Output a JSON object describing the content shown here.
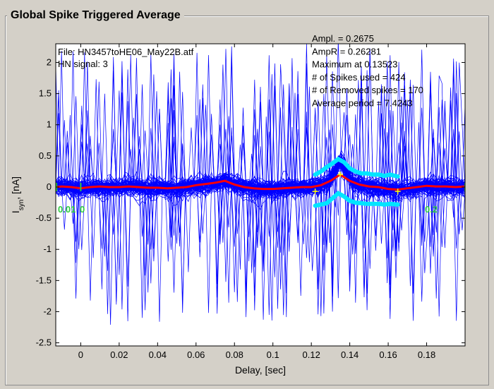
{
  "panel": {
    "title": "Global Spike Triggered Average"
  },
  "chart_data": {
    "type": "line",
    "title": "",
    "xlabel": "Delay, [sec]",
    "ylabel_main": "I",
    "ylabel_sub": "syn",
    "ylabel_tail": ", [nA]",
    "xlim": [
      -0.013,
      0.2
    ],
    "ylim": [
      -2.55,
      2.3
    ],
    "x_ticks": [
      0,
      0.02,
      0.04,
      0.06,
      0.08,
      0.1,
      0.12,
      0.14,
      0.16,
      0.18
    ],
    "x_tick_labels": [
      "0",
      "0.02",
      "0.04",
      "0.06",
      "0.08",
      "0.1",
      "0.12",
      "0.14",
      "0.16",
      "0.18"
    ],
    "y_ticks": [
      2,
      1.5,
      1,
      0.5,
      0,
      -0.5,
      -1,
      -1.5,
      -2,
      -2.5
    ],
    "y_tick_labels": [
      "2",
      "1.5",
      "1",
      "0.5",
      "0",
      "-0.5",
      "-1",
      "-1.5",
      "-2",
      "-2.5"
    ],
    "file_line": "File: HN3457toHE06_May22B.atf",
    "signal_line": "HN signal: 3",
    "stats": [
      "Ampl. = 0.2675",
      "AmpR = 0.26281",
      "Maximum at 0.13523",
      "# of Spikes used = 424",
      "# of Removed spikes = 170",
      "Average period = 7.4243"
    ],
    "window_left_label": "0.01",
    "window_left_marker": "0",
    "window_right_label": "0.2",
    "window_left_x": 0,
    "window_right_x": 0.2,
    "average_trace": {
      "x": [
        -0.013,
        -0.01,
        -0.005,
        0,
        0.005,
        0.01,
        0.015,
        0.02,
        0.025,
        0.03,
        0.035,
        0.04,
        0.045,
        0.05,
        0.055,
        0.06,
        0.065,
        0.07,
        0.075,
        0.08,
        0.085,
        0.09,
        0.095,
        0.1,
        0.105,
        0.11,
        0.115,
        0.12,
        0.125,
        0.13,
        0.135,
        0.14,
        0.145,
        0.15,
        0.155,
        0.16,
        0.165,
        0.17,
        0.175,
        0.18,
        0.185,
        0.19,
        0.195,
        0.2
      ],
      "y": [
        0.0,
        0.01,
        0.0,
        -0.02,
        0.0,
        0.01,
        0.0,
        0.0,
        0.01,
        0.0,
        -0.01,
        -0.01,
        -0.02,
        -0.01,
        0.0,
        0.03,
        0.05,
        0.07,
        0.1,
        0.04,
        0.0,
        -0.02,
        -0.03,
        -0.03,
        -0.02,
        -0.01,
        0.0,
        0.0,
        0.03,
        0.1,
        0.2,
        0.1,
        0.04,
        0.01,
        0.0,
        -0.03,
        -0.04,
        -0.02,
        0.0,
        0.02,
        0.01,
        0.01,
        0.0,
        0.01
      ]
    },
    "ci_x": [
      0.122,
      0.125,
      0.128,
      0.131,
      0.134,
      0.137,
      0.14,
      0.143,
      0.146,
      0.149,
      0.152,
      0.155,
      0.158,
      0.161,
      0.165
    ],
    "ci_upper": [
      0.2,
      0.25,
      0.32,
      0.38,
      0.45,
      0.4,
      0.3,
      0.25,
      0.22,
      0.22,
      0.2,
      0.2,
      0.18,
      0.2,
      0.17
    ],
    "ci_lower": [
      -0.3,
      -0.28,
      -0.26,
      -0.18,
      -0.1,
      -0.15,
      -0.22,
      -0.25,
      -0.26,
      -0.27,
      -0.27,
      -0.27,
      -0.28,
      -0.27,
      -0.28
    ],
    "markers": [
      {
        "x": 0.122,
        "y": -0.07
      },
      {
        "x": 0.135,
        "y": 0.2
      },
      {
        "x": 0.165,
        "y": -0.07
      }
    ],
    "colors": {
      "traces": "#0000ff",
      "average": "#ff0000",
      "ci": "#00e5ff",
      "marker": "#ffff00",
      "window": "#2ecc40"
    }
  }
}
